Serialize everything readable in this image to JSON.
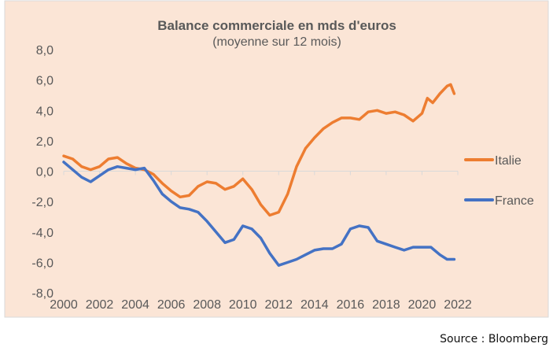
{
  "chart_data": {
    "type": "line",
    "title": "Balance commerciale en mds d'euros",
    "subtitle": "(moyenne sur 12 mois)",
    "xlabel": "",
    "ylabel": "",
    "xlim": [
      2000,
      2022
    ],
    "ylim": [
      -8,
      8
    ],
    "x_ticks": [
      "2000",
      "2002",
      "2004",
      "2006",
      "2008",
      "2010",
      "2012",
      "2014",
      "2016",
      "2018",
      "2020",
      "2022"
    ],
    "y_ticks": [
      "8,0",
      "6,0",
      "4,0",
      "2,0",
      "0,0",
      "-2,0",
      "-4,0",
      "-6,0",
      "-8,0"
    ],
    "legend_position": "right",
    "grid": false,
    "series": [
      {
        "name": "Italie",
        "color": "#ED7D31",
        "x": [
          2000,
          2000.5,
          2001,
          2001.5,
          2002,
          2002.5,
          2003,
          2003.5,
          2004,
          2004.5,
          2005,
          2005.5,
          2006,
          2006.5,
          2007,
          2007.5,
          2008,
          2008.5,
          2009,
          2009.5,
          2010,
          2010.5,
          2011,
          2011.5,
          2012,
          2012.5,
          2013,
          2013.5,
          2014,
          2014.5,
          2015,
          2015.5,
          2016,
          2016.5,
          2017,
          2017.5,
          2018,
          2018.5,
          2019,
          2019.5,
          2020,
          2020.3,
          2020.6,
          2021,
          2021.4,
          2021.6,
          2021.8
        ],
        "values": [
          1.0,
          0.8,
          0.3,
          0.1,
          0.3,
          0.8,
          0.9,
          0.5,
          0.2,
          0.1,
          -0.2,
          -0.8,
          -1.3,
          -1.7,
          -1.6,
          -1.0,
          -0.7,
          -0.8,
          -1.2,
          -1.0,
          -0.5,
          -1.2,
          -2.2,
          -2.9,
          -2.7,
          -1.5,
          0.3,
          1.5,
          2.2,
          2.8,
          3.2,
          3.5,
          3.5,
          3.4,
          3.9,
          4.0,
          3.8,
          3.9,
          3.7,
          3.3,
          3.8,
          4.8,
          4.5,
          5.1,
          5.6,
          5.7,
          5.1
        ]
      },
      {
        "name": "France",
        "color": "#4472C4",
        "x": [
          2000,
          2000.5,
          2001,
          2001.5,
          2002,
          2002.5,
          2003,
          2003.5,
          2004,
          2004.5,
          2005,
          2005.5,
          2006,
          2006.5,
          2007,
          2007.5,
          2008,
          2008.5,
          2009,
          2009.5,
          2010,
          2010.5,
          2011,
          2011.5,
          2012,
          2012.5,
          2013,
          2013.5,
          2014,
          2014.5,
          2015,
          2015.5,
          2016,
          2016.5,
          2017,
          2017.5,
          2018,
          2018.5,
          2019,
          2019.5,
          2020,
          2020.5,
          2021,
          2021.4,
          2021.8
        ],
        "values": [
          0.6,
          0.1,
          -0.4,
          -0.7,
          -0.3,
          0.1,
          0.3,
          0.2,
          0.1,
          0.2,
          -0.6,
          -1.5,
          -2.0,
          -2.4,
          -2.5,
          -2.7,
          -3.3,
          -4.0,
          -4.7,
          -4.5,
          -3.6,
          -3.8,
          -4.4,
          -5.4,
          -6.2,
          -6.0,
          -5.8,
          -5.5,
          -5.2,
          -5.1,
          -5.1,
          -4.8,
          -3.8,
          -3.6,
          -3.7,
          -4.6,
          -4.8,
          -5.0,
          -5.2,
          -5.0,
          -5.0,
          -5.0,
          -5.5,
          -5.8,
          -5.8
        ]
      }
    ]
  },
  "source": "Source : Bloomberg"
}
